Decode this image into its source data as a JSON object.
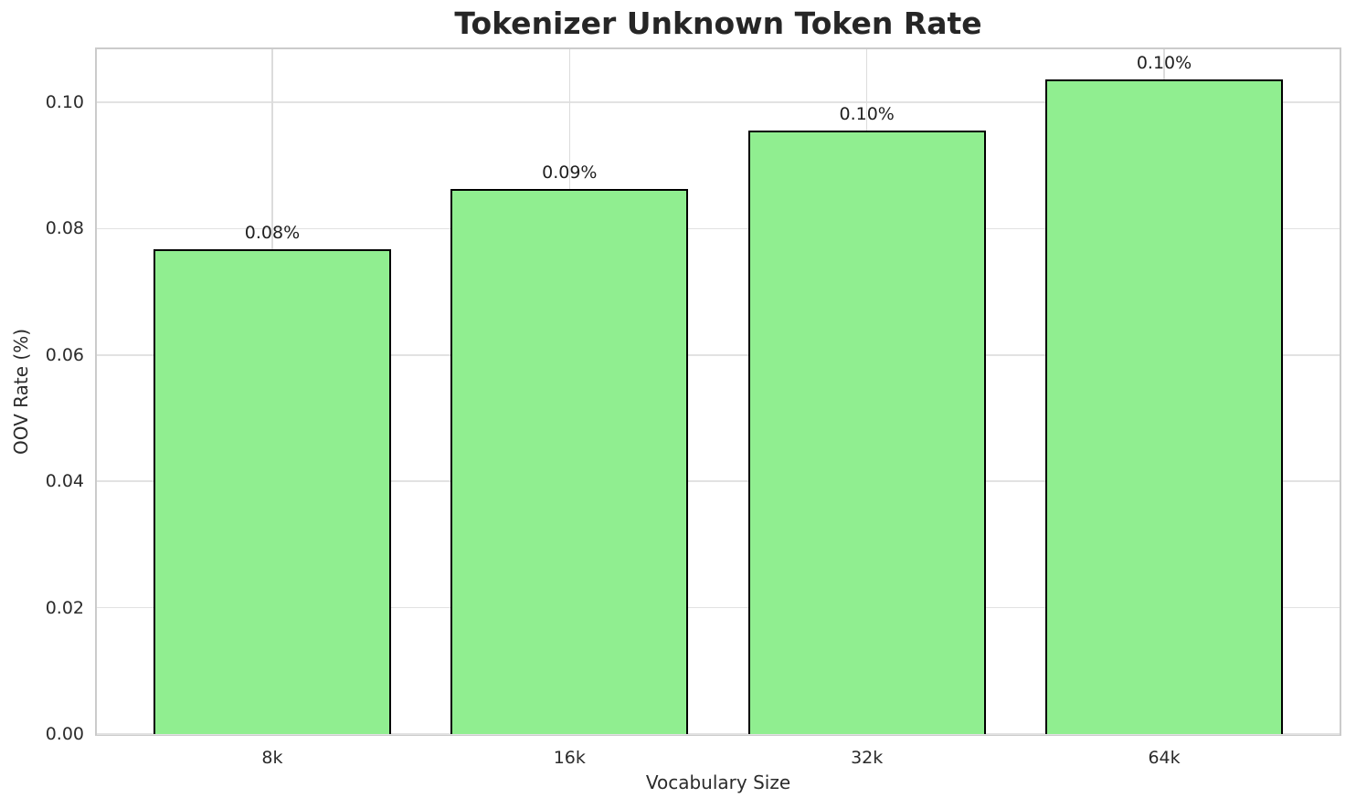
{
  "chart_data": {
    "type": "bar",
    "title": "Tokenizer Unknown Token Rate",
    "xlabel": "Vocabulary Size",
    "ylabel": "OOV Rate (%)",
    "categories": [
      "8k",
      "16k",
      "32k",
      "64k"
    ],
    "values": [
      0.0768,
      0.0863,
      0.0955,
      0.1037
    ],
    "bar_labels": [
      "0.08%",
      "0.09%",
      "0.10%",
      "0.10%"
    ],
    "yticks": [
      0.0,
      0.02,
      0.04,
      0.06,
      0.08,
      0.1
    ],
    "ytick_labels": [
      "0.00",
      "0.02",
      "0.04",
      "0.06",
      "0.08",
      "0.10"
    ],
    "ylim": [
      0,
      0.1084
    ],
    "xlim_units": [
      -0.59,
      3.59
    ],
    "bar_width_units": 0.8,
    "grid": true,
    "legend_position": "none",
    "bar_color": "#90EE90",
    "bar_edge_color": "#000000",
    "grid_color": "#e2e2e2",
    "spine_color": "#cbcbcb",
    "text_color": "#262626",
    "background_color": "#ffffff"
  }
}
